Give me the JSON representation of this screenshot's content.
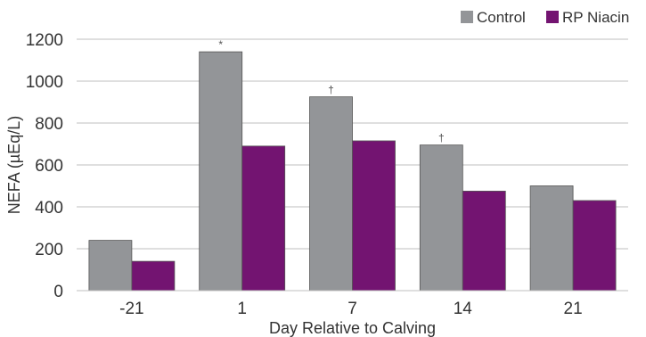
{
  "chart_data": {
    "type": "bar",
    "categories": [
      "-21",
      "1",
      "7",
      "14",
      "21"
    ],
    "series": [
      {
        "name": "Control",
        "values": [
          240,
          1140,
          925,
          695,
          500
        ],
        "color": "#939598"
      },
      {
        "name": "RP Niacin",
        "values": [
          140,
          690,
          715,
          475,
          430
        ],
        "color": "#731471"
      }
    ],
    "annotations": [
      {
        "category": "1",
        "series": "Control",
        "text": "*"
      },
      {
        "category": "7",
        "series": "Control",
        "text": "†"
      },
      {
        "category": "14",
        "series": "Control",
        "text": "†"
      }
    ],
    "xlabel": "Day Relative to Calving",
    "ylabel": "NEFA (µEq/L)",
    "ylim": [
      0,
      1200
    ],
    "yticks": [
      "0",
      "200",
      "400",
      "600",
      "800",
      "1000",
      "1200"
    ],
    "grid": true,
    "legend_position": "top-right",
    "gridline_color": "#bfbfbf"
  }
}
